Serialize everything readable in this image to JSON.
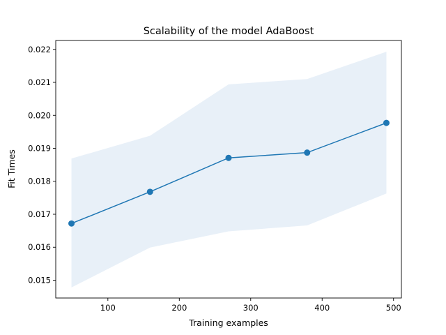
{
  "chart_data": {
    "type": "line",
    "title": "Scalability of the model AdaBoost",
    "xlabel": "Training examples",
    "ylabel": "Fit Times",
    "x": [
      49,
      159,
      269,
      379,
      490
    ],
    "series": [
      {
        "values": [
          0.01672,
          0.01768,
          0.01871,
          0.01887,
          0.01977
        ],
        "band_lower": [
          0.01478,
          0.01599,
          0.01648,
          0.01666,
          0.01763
        ],
        "band_upper": [
          0.01869,
          0.01938,
          0.02094,
          0.0211,
          0.02193
        ],
        "color": "#1f77b4",
        "band_color": "#e8f0f8"
      }
    ],
    "xlim": [
      27,
      511
    ],
    "ylim": [
      0.01446,
      0.02227
    ],
    "xticks": [
      100,
      200,
      300,
      400,
      500
    ],
    "xtick_labels": [
      "100",
      "200",
      "300",
      "400",
      "500"
    ],
    "yticks": [
      0.015,
      0.016,
      0.017,
      0.018,
      0.019,
      0.02,
      0.021,
      0.022
    ],
    "ytick_labels": [
      "0.015",
      "0.016",
      "0.017",
      "0.018",
      "0.019",
      "0.020",
      "0.021",
      "0.022"
    ],
    "grid": false,
    "legend": "none"
  }
}
